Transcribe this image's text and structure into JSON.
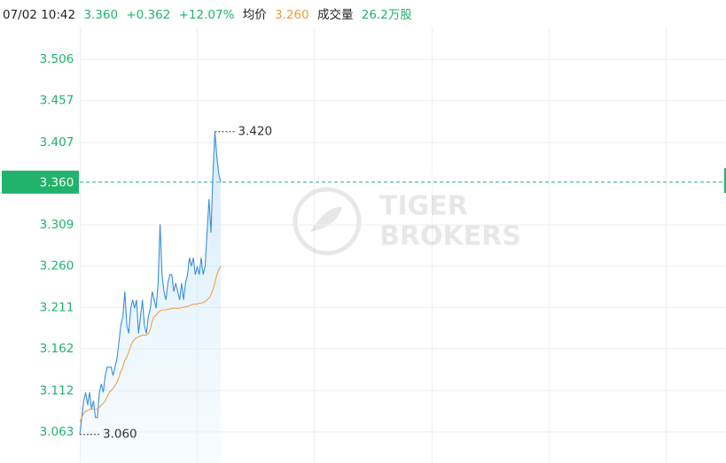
{
  "chart_data": {
    "type": "line",
    "header": {
      "time": "07/02 10:42",
      "price": "3.360",
      "change": "+0.362",
      "change_pct": "+12.07%",
      "avg_label": "均价",
      "avg": "3.260",
      "volume_label": "成交量",
      "volume": "26.2万股"
    },
    "watermark": [
      "TIGER",
      "BROKERS"
    ],
    "ylim": [
      3.026,
      3.545
    ],
    "yticks": [
      {
        "value": 3.506,
        "label": "3.506"
      },
      {
        "value": 3.457,
        "label": "3.457"
      },
      {
        "value": 3.407,
        "label": "3.407"
      },
      {
        "value": 3.36,
        "label": "3.360"
      },
      {
        "value": 3.309,
        "label": "3.309"
      },
      {
        "value": 3.26,
        "label": "3.260"
      },
      {
        "value": 3.211,
        "label": "3.211"
      },
      {
        "value": 3.162,
        "label": "3.162"
      },
      {
        "value": 3.112,
        "label": "3.112"
      },
      {
        "value": 3.063,
        "label": "3.063"
      }
    ],
    "grid": true,
    "series": [
      {
        "color": "#3a8fdc",
        "fill": true,
        "values": [
          3.06,
          3.08,
          3.1,
          3.11,
          3.095,
          3.11,
          3.09,
          3.1,
          3.08,
          3.08,
          3.11,
          3.12,
          3.11,
          3.13,
          3.14,
          3.14,
          3.14,
          3.13,
          3.14,
          3.15,
          3.17,
          3.19,
          3.2,
          3.23,
          3.19,
          3.18,
          3.21,
          3.22,
          3.21,
          3.22,
          3.18,
          3.2,
          3.22,
          3.19,
          3.18,
          3.2,
          3.21,
          3.23,
          3.22,
          3.21,
          3.24,
          3.31,
          3.25,
          3.23,
          3.22,
          3.24,
          3.25,
          3.25,
          3.23,
          3.24,
          3.23,
          3.22,
          3.24,
          3.22,
          3.24,
          3.25,
          3.27,
          3.26,
          3.27,
          3.25,
          3.26,
          3.25,
          3.27,
          3.25,
          3.26,
          3.3,
          3.34,
          3.3,
          3.37,
          3.42,
          3.39,
          3.37,
          3.36
        ]
      },
      {
        "color": "#f0a04b",
        "fill": false,
        "values": [
          3.075,
          3.08,
          3.085,
          3.088,
          3.088,
          3.09,
          3.09,
          3.09,
          3.09,
          3.09,
          3.092,
          3.095,
          3.097,
          3.1,
          3.105,
          3.11,
          3.112,
          3.115,
          3.118,
          3.122,
          3.128,
          3.135,
          3.14,
          3.148,
          3.152,
          3.158,
          3.165,
          3.17,
          3.173,
          3.175,
          3.176,
          3.177,
          3.178,
          3.178,
          3.178,
          3.18,
          3.185,
          3.195,
          3.2,
          3.202,
          3.205,
          3.207,
          3.208,
          3.208,
          3.208,
          3.209,
          3.209,
          3.21,
          3.21,
          3.21,
          3.21,
          3.21,
          3.211,
          3.211,
          3.212,
          3.212,
          3.213,
          3.214,
          3.215,
          3.215,
          3.215,
          3.216,
          3.216,
          3.217,
          3.218,
          3.22,
          3.222,
          3.226,
          3.232,
          3.24,
          3.25,
          3.256,
          3.26
        ]
      }
    ],
    "annotations": [
      {
        "value": 3.42,
        "label": "3.420"
      },
      {
        "value": 3.06,
        "label": "3.060"
      }
    ]
  }
}
